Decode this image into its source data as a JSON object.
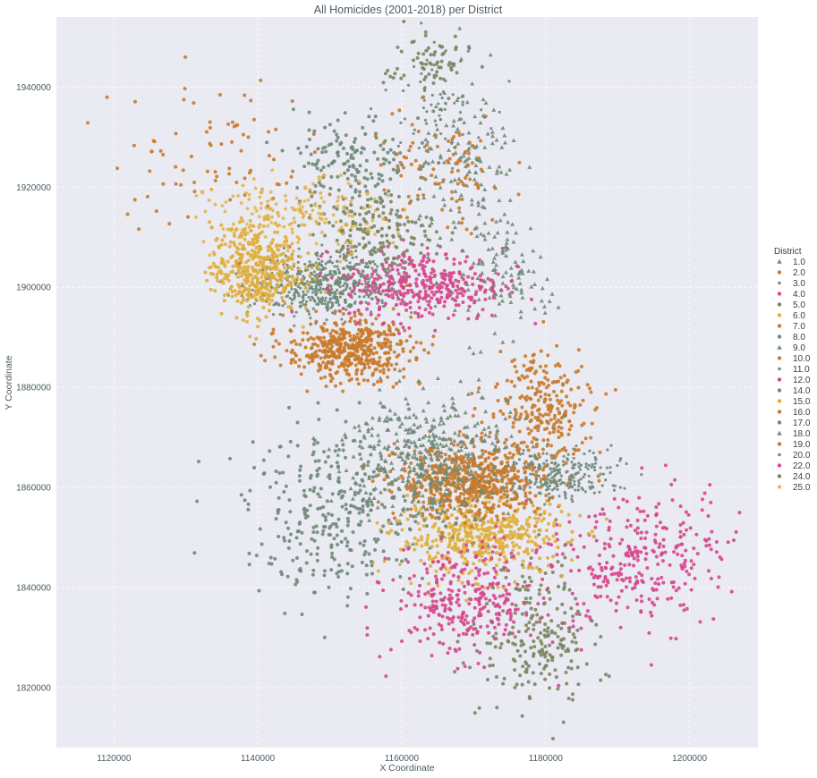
{
  "chart_data": {
    "type": "scatter",
    "title": "All Homicides (2001-2018) per District",
    "xlabel": "X Coordinate",
    "ylabel": "Y Coordinate",
    "xlim": [
      1112000,
      1209500
    ],
    "ylim": [
      1808000,
      1954000
    ],
    "xticks": [
      1120000,
      1140000,
      1160000,
      1180000,
      1200000
    ],
    "yticks": [
      1820000,
      1840000,
      1860000,
      1880000,
      1900000,
      1920000,
      1940000
    ],
    "xtick_labels": [
      "1120000",
      "1140000",
      "1160000",
      "1180000",
      "1200000"
    ],
    "ytick_labels": [
      "1820000",
      "1840000",
      "1860000",
      "1880000",
      "1900000",
      "1920000",
      "1940000"
    ],
    "grid": true,
    "legend": {
      "title": "District",
      "placement": "right",
      "entries": [
        "1.0",
        "2.0",
        "3.0",
        "4.0",
        "5.0",
        "6.0",
        "7.0",
        "8.0",
        "9.0",
        "10.0",
        "11.0",
        "12.0",
        "14.0",
        "15.0",
        "16.0",
        "17.0",
        "18.0",
        "19.0",
        "20.0",
        "22.0",
        "24.0",
        "25.0"
      ]
    },
    "palette": {
      "green": "#6f8a78",
      "orange": "#c97a2b",
      "pink": "#d6478c",
      "olive": "#7b8560",
      "gold": "#e0ae3b"
    },
    "series": [
      {
        "name": "1.0",
        "marker": "triangle",
        "color": "#6f8a78",
        "cx": 1174000,
        "cy": 1902000,
        "sx": 3000,
        "sy": 5500,
        "n": 110
      },
      {
        "name": "2.0",
        "marker": "circle",
        "color": "#c97a2b",
        "cx": 1179500,
        "cy": 1875500,
        "sx": 3600,
        "sy": 5500,
        "n": 260
      },
      {
        "name": "3.0",
        "marker": "dot",
        "color": "#6f8a78",
        "cx": 1181500,
        "cy": 1862500,
        "sx": 4200,
        "sy": 2700,
        "n": 250
      },
      {
        "name": "4.0",
        "marker": "circle",
        "color": "#d6478c",
        "cx": 1193000,
        "cy": 1845500,
        "sx": 6000,
        "sy": 7000,
        "n": 300
      },
      {
        "name": "5.0",
        "marker": "circle",
        "color": "#7b8560",
        "cx": 1178500,
        "cy": 1831000,
        "sx": 3800,
        "sy": 7500,
        "n": 240
      },
      {
        "name": "6.0",
        "marker": "circle",
        "color": "#e0ae3b",
        "cx": 1171000,
        "cy": 1850000,
        "sx": 6000,
        "sy": 3800,
        "n": 480
      },
      {
        "name": "7.0",
        "marker": "circle",
        "color": "#c97a2b",
        "cx": 1169500,
        "cy": 1861000,
        "sx": 5000,
        "sy": 3600,
        "n": 620
      },
      {
        "name": "8.0",
        "marker": "circle",
        "color": "#6f8a78",
        "cx": 1151500,
        "cy": 1855000,
        "sx": 6500,
        "sy": 8500,
        "n": 330
      },
      {
        "name": "9.0",
        "marker": "triangle",
        "color": "#6f8a78",
        "cx": 1163500,
        "cy": 1866500,
        "sx": 5800,
        "sy": 6500,
        "n": 430
      },
      {
        "name": "10.0",
        "marker": "circle",
        "color": "#c97a2b",
        "cx": 1152500,
        "cy": 1887500,
        "sx": 4300,
        "sy": 3000,
        "n": 480
      },
      {
        "name": "11.0",
        "marker": "dot",
        "color": "#6f8a78",
        "cx": 1149500,
        "cy": 1900500,
        "sx": 5000,
        "sy": 3200,
        "n": 560
      },
      {
        "name": "12.0",
        "marker": "circle",
        "color": "#d6478c",
        "cx": 1163000,
        "cy": 1900500,
        "sx": 5500,
        "sy": 3600,
        "n": 360
      },
      {
        "name": "14.0",
        "marker": "circle",
        "color": "#7b8560",
        "cx": 1156000,
        "cy": 1911000,
        "sx": 4200,
        "sy": 4000,
        "n": 160
      },
      {
        "name": "15.0",
        "marker": "circle",
        "color": "#e0ae3b",
        "cx": 1139500,
        "cy": 1903500,
        "sx": 3000,
        "sy": 4500,
        "n": 420
      },
      {
        "name": "16.0",
        "marker": "circle",
        "color": "#c97a2b",
        "cx": 1133000,
        "cy": 1927500,
        "sx": 7000,
        "sy": 7500,
        "n": 80
      },
      {
        "name": "17.0",
        "marker": "circle",
        "color": "#6f8a78",
        "cx": 1153000,
        "cy": 1924500,
        "sx": 4000,
        "sy": 5000,
        "n": 160
      },
      {
        "name": "18.0",
        "marker": "triangle",
        "color": "#6f8a78",
        "cx": 1169500,
        "cy": 1922000,
        "sx": 3500,
        "sy": 9000,
        "n": 150
      },
      {
        "name": "19.0",
        "marker": "circle",
        "color": "#c97a2b",
        "cx": 1165000,
        "cy": 1922500,
        "sx": 5000,
        "sy": 6000,
        "n": 90
      },
      {
        "name": "20.0",
        "marker": "dot",
        "color": "#6f8a78",
        "cx": 1164500,
        "cy": 1937500,
        "sx": 3500,
        "sy": 6000,
        "n": 80
      },
      {
        "name": "22.0",
        "marker": "circle",
        "color": "#d6478c",
        "cx": 1169000,
        "cy": 1837000,
        "sx": 5000,
        "sy": 5500,
        "n": 300
      },
      {
        "name": "24.0",
        "marker": "circle",
        "color": "#7b8560",
        "cx": 1163500,
        "cy": 1945000,
        "sx": 3000,
        "sy": 4000,
        "n": 70
      },
      {
        "name": "25.0",
        "marker": "star",
        "color": "#e0ae3b",
        "cx": 1145000,
        "cy": 1913500,
        "sx": 6000,
        "sy": 4000,
        "n": 200
      }
    ]
  }
}
